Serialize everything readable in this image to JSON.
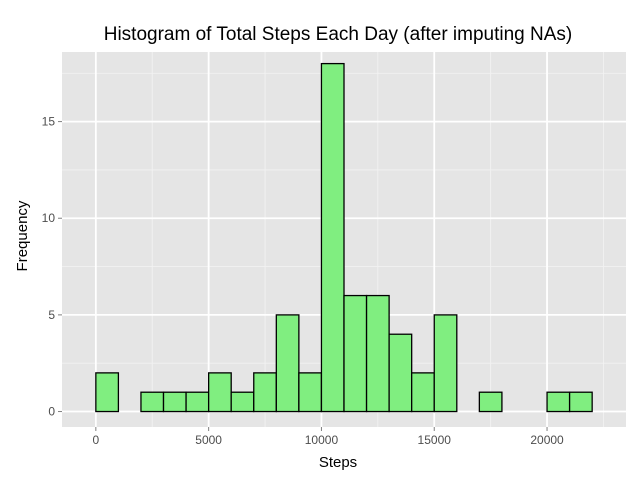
{
  "chart_data": {
    "type": "bar",
    "title": "Histogram of Total Steps Each Day (after imputing NAs)",
    "xlabel": "Steps",
    "ylabel": "Frequency",
    "xlim": [
      -1500,
      23500
    ],
    "ylim": [
      -0.8,
      18.6
    ],
    "x_ticks": [
      0,
      5000,
      10000,
      15000,
      20000
    ],
    "y_ticks": [
      0,
      5,
      10,
      15
    ],
    "bin_width": 1000,
    "bins": [
      {
        "start": -1000,
        "value": 0
      },
      {
        "start": 0,
        "value": 2
      },
      {
        "start": 1000,
        "value": 0
      },
      {
        "start": 2000,
        "value": 1
      },
      {
        "start": 3000,
        "value": 1
      },
      {
        "start": 4000,
        "value": 1
      },
      {
        "start": 5000,
        "value": 2
      },
      {
        "start": 6000,
        "value": 1
      },
      {
        "start": 7000,
        "value": 2
      },
      {
        "start": 8000,
        "value": 5
      },
      {
        "start": 9000,
        "value": 2
      },
      {
        "start": 10000,
        "value": 18
      },
      {
        "start": 11000,
        "value": 6
      },
      {
        "start": 12000,
        "value": 6
      },
      {
        "start": 13000,
        "value": 4
      },
      {
        "start": 14000,
        "value": 2
      },
      {
        "start": 15000,
        "value": 5
      },
      {
        "start": 16000,
        "value": 0
      },
      {
        "start": 17000,
        "value": 1
      },
      {
        "start": 18000,
        "value": 0
      },
      {
        "start": 19000,
        "value": 0
      },
      {
        "start": 20000,
        "value": 1
      },
      {
        "start": 21000,
        "value": 1
      },
      {
        "start": 22000,
        "value": 0
      }
    ],
    "grid": true,
    "bar_fill": "#80ee80",
    "bar_stroke": "#000000",
    "panel_background": "#e5e5e5",
    "gridline_color": "#ffffff"
  }
}
